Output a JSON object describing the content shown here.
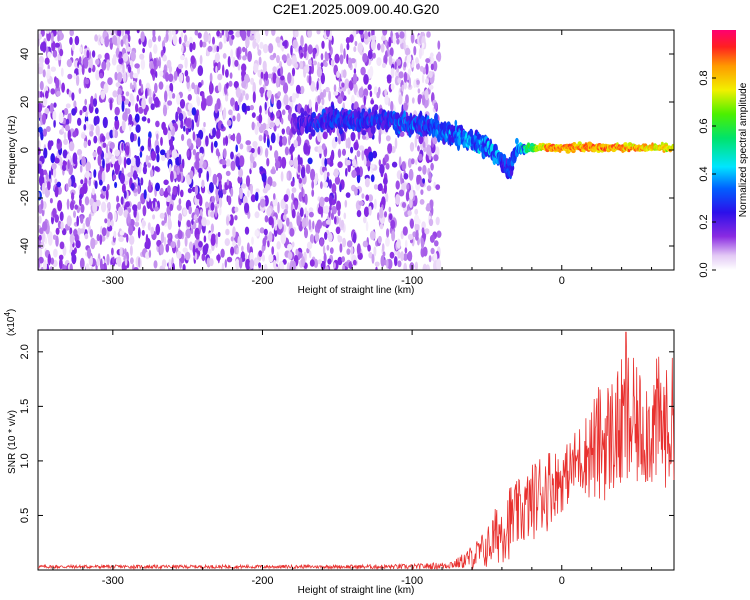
{
  "title": "C2E1.2025.009.00.40.G20",
  "chart_data": [
    {
      "type": "heatmap",
      "title": "C2E1.2025.009.00.40.G20",
      "xlabel": "Height of straight line (km)",
      "ylabel": "Frequency (Hz)",
      "xlim": [
        -350,
        75
      ],
      "ylim": [
        -50,
        50
      ],
      "x_ticks": [
        -300,
        -200,
        -100,
        0
      ],
      "x_tick_labels": [
        "-300",
        "-200",
        "-100",
        "0"
      ],
      "y_ticks": [
        -40,
        -20,
        0,
        20,
        40
      ],
      "y_tick_labels": [
        "-40",
        "-20",
        "0",
        "20",
        "40"
      ],
      "colorbar": {
        "label": "Normalized spectral amplitude",
        "range": [
          0,
          1
        ],
        "ticks": [
          0.0,
          0.2,
          0.4,
          0.6,
          0.8
        ],
        "tick_labels": [
          "0.0",
          "0.2",
          "0.4",
          "0.6",
          "0.8"
        ],
        "colormap": "rainbow (white-violet-blue-cyan-green-yellow-orange-red)"
      },
      "features": {
        "noise_region_km": [
          -350,
          -90
        ],
        "noise_amplitude": "0.0-0.25",
        "trace": [
          {
            "x": -180,
            "y": 10,
            "amp": 0.2
          },
          {
            "x": -160,
            "y": 12,
            "amp": 0.3
          },
          {
            "x": -120,
            "y": 13,
            "amp": 0.3
          },
          {
            "x": -100,
            "y": 11,
            "amp": 0.35
          },
          {
            "x": -90,
            "y": 10,
            "amp": 0.35
          },
          {
            "x": -80,
            "y": 7,
            "amp": 0.35
          },
          {
            "x": -70,
            "y": 6,
            "amp": 0.4
          },
          {
            "x": -60,
            "y": 4,
            "amp": 0.4
          },
          {
            "x": -50,
            "y": 1,
            "amp": 0.4
          },
          {
            "x": -45,
            "y": -2,
            "amp": 0.4
          },
          {
            "x": -40,
            "y": -5,
            "amp": 0.35
          },
          {
            "x": -35,
            "y": -8,
            "amp": 0.3
          },
          {
            "x": -30,
            "y": 0,
            "amp": 0.4
          },
          {
            "x": -20,
            "y": 1,
            "amp": 0.6
          },
          {
            "x": -10,
            "y": 1,
            "amp": 0.85
          },
          {
            "x": 0,
            "y": 1,
            "amp": 0.85
          },
          {
            "x": 20,
            "y": 1,
            "amp": 0.85
          },
          {
            "x": 40,
            "y": 1,
            "amp": 0.85
          },
          {
            "x": 60,
            "y": 1,
            "amp": 0.8
          },
          {
            "x": 75,
            "y": 1,
            "amp": 0.75
          }
        ]
      }
    },
    {
      "type": "line",
      "xlabel": "Height of straight line (km)",
      "ylabel": "SNR (10 * v/v)",
      "y_multiplier_label": "(x10",
      "y_multiplier_exponent": "4",
      "y_multiplier_close": ")",
      "xlim": [
        -350,
        75
      ],
      "ylim": [
        0,
        2.2
      ],
      "x_ticks": [
        -300,
        -200,
        -100,
        0
      ],
      "x_tick_labels": [
        "-300",
        "-200",
        "-100",
        "0"
      ],
      "y_ticks": [
        0.5,
        1.0,
        1.5,
        2.0
      ],
      "y_tick_labels": [
        "0.5",
        "1.0",
        "1.5",
        "2.0"
      ],
      "color": "#e8312f",
      "series": [
        {
          "x": [
            -350,
            -300,
            -250,
            -200,
            -150,
            -100,
            -80,
            -70,
            -60,
            -50,
            -45,
            -40,
            -35,
            -30,
            -25,
            -20,
            -15,
            -10,
            -5,
            0,
            5,
            10,
            15,
            20,
            25,
            30,
            35,
            40,
            45,
            50,
            55,
            60,
            65,
            70,
            75
          ],
          "values": [
            0.03,
            0.03,
            0.03,
            0.03,
            0.03,
            0.03,
            0.04,
            0.06,
            0.12,
            0.2,
            0.3,
            0.38,
            0.45,
            0.5,
            0.55,
            0.62,
            0.7,
            0.75,
            0.8,
            0.82,
            0.9,
            1.0,
            1.05,
            1.1,
            1.15,
            1.2,
            1.25,
            1.3,
            1.35,
            1.3,
            1.32,
            1.3,
            1.35,
            1.3,
            1.35
          ],
          "noise_amplitude": [
            0.01,
            0.01,
            0.01,
            0.01,
            0.01,
            0.015,
            0.02,
            0.03,
            0.07,
            0.12,
            0.16,
            0.2,
            0.22,
            0.2,
            0.2,
            0.22,
            0.24,
            0.25,
            0.2,
            0.18,
            0.18,
            0.2,
            0.22,
            0.3,
            0.35,
            0.35,
            0.35,
            0.4,
            0.45,
            0.35,
            0.35,
            0.35,
            0.4,
            0.35,
            0.4
          ],
          "peak": {
            "x": 43,
            "y": 2.18
          }
        }
      ]
    }
  ]
}
